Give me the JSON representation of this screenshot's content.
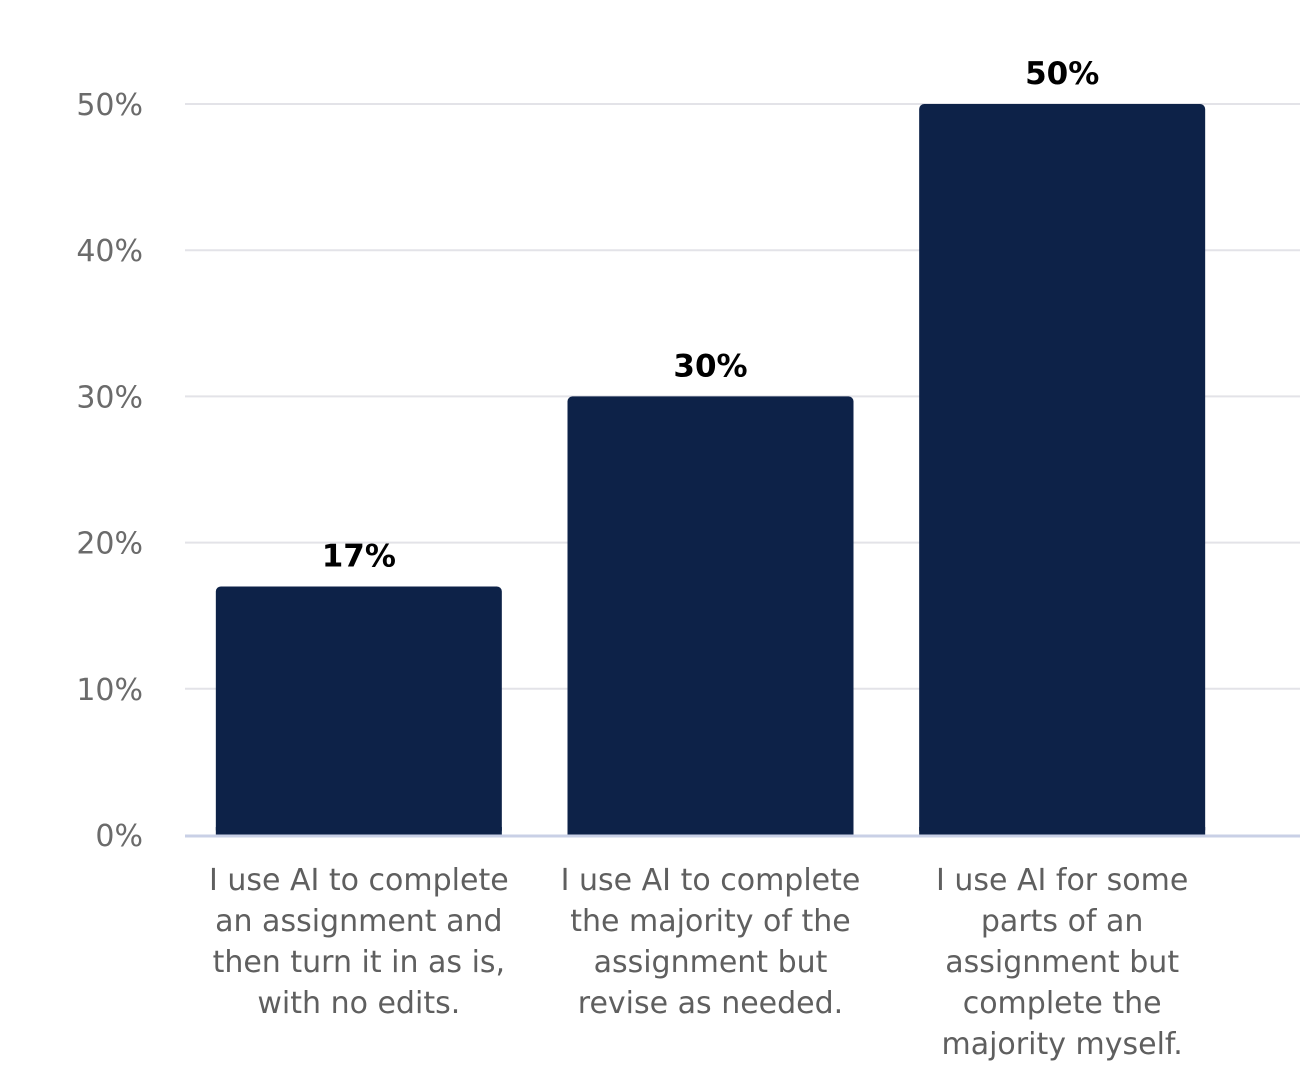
{
  "chart_data": {
    "type": "bar",
    "categories": [
      "I use AI to complete an assignment and then turn it in as is, with no edits.",
      "I use AI to complete the majority of the assignment but revise as needed.",
      "I use AI for some parts of an assignment but complete the majority myself."
    ],
    "category_lines": [
      [
        "I use AI to complete",
        "an assignment and",
        "then turn it in as is,",
        "with no edits."
      ],
      [
        "I use AI to complete",
        "the majority of the",
        "assignment but",
        "revise as needed."
      ],
      [
        "I use AI for some",
        "parts of an",
        "assignment but",
        "complete the",
        "majority myself."
      ]
    ],
    "values": [
      17,
      30,
      50
    ],
    "data_labels": [
      "17%",
      "30%",
      "50%"
    ],
    "ylim": [
      0,
      50
    ],
    "yticks": [
      0,
      10,
      20,
      30,
      40,
      50
    ],
    "ytick_labels": [
      "0%",
      "10%",
      "20%",
      "30%",
      "40%",
      "50%"
    ],
    "grid": true,
    "title": "",
    "xlabel": "",
    "ylabel": "",
    "colors": {
      "bar": "#0d2248",
      "grid": "#e3e3e8",
      "baseline": "#c9d0e6"
    }
  }
}
